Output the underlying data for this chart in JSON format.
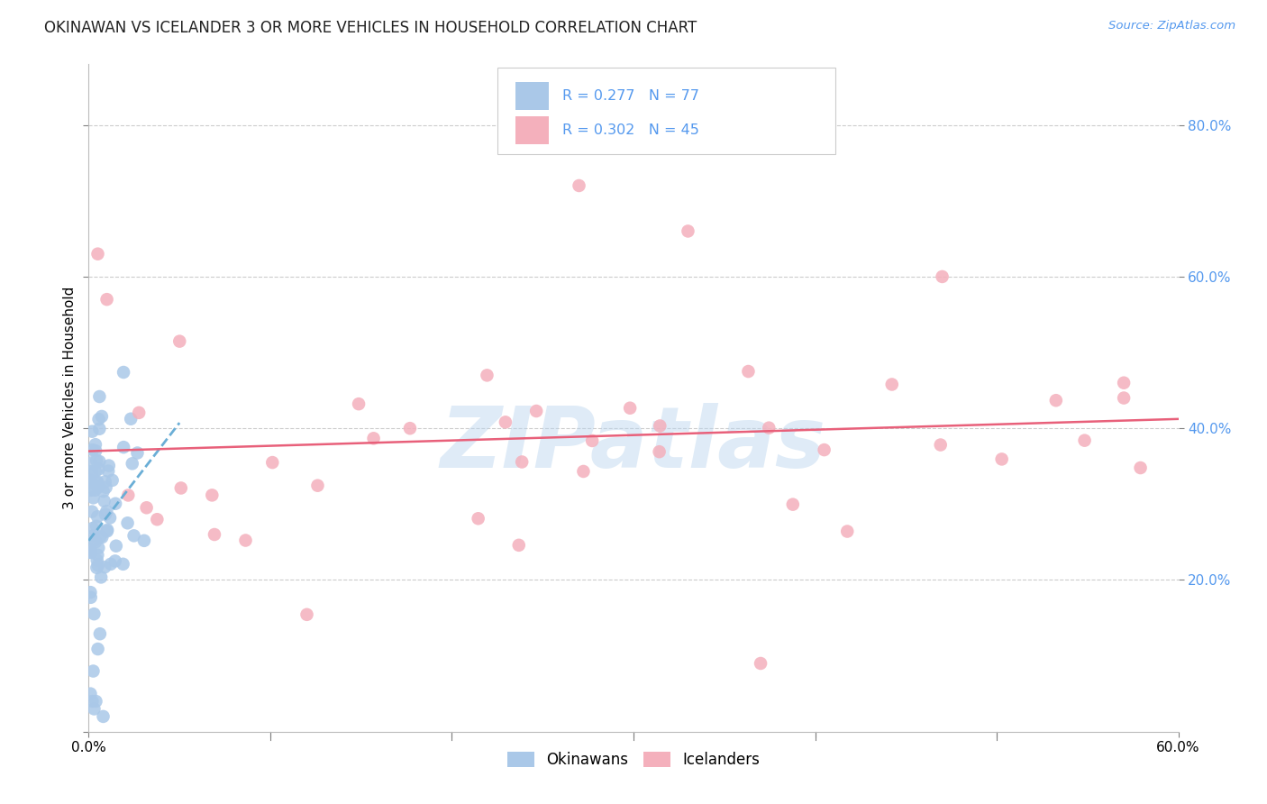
{
  "title": "OKINAWAN VS ICELANDER 3 OR MORE VEHICLES IN HOUSEHOLD CORRELATION CHART",
  "source": "Source: ZipAtlas.com",
  "ylabel": "3 or more Vehicles in Household",
  "xlim": [
    0.0,
    0.6
  ],
  "ylim": [
    0.0,
    0.88
  ],
  "legend_blue_r": "R = 0.277",
  "legend_blue_n": "N = 77",
  "legend_pink_r": "R = 0.302",
  "legend_pink_n": "N = 45",
  "legend_blue_label": "Okinawans",
  "legend_pink_label": "Icelanders",
  "watermark_text": "ZIPatlas",
  "blue_color": "#aac8e8",
  "blue_line_color": "#6aaed6",
  "pink_color": "#f4b0bc",
  "pink_line_color": "#e8607a",
  "background_color": "#ffffff",
  "grid_color": "#cccccc",
  "right_tick_color": "#5599ee",
  "title_color": "#222222",
  "source_color": "#5599ee"
}
